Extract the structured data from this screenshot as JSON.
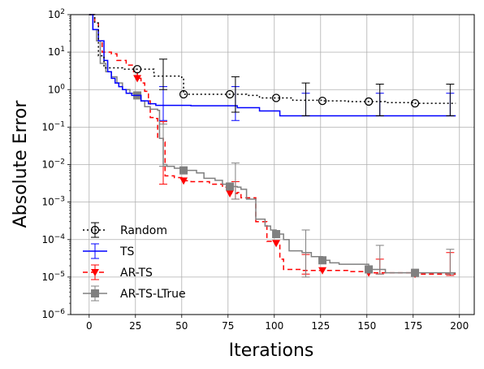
{
  "chart_data": {
    "type": "line",
    "xlabel": "Iterations",
    "ylabel": "Absolute Error",
    "xlim": [
      -10,
      208
    ],
    "ylim": [
      1e-06,
      100
    ],
    "yscale": "log",
    "grid": true,
    "legend_position": "lower-left",
    "x_ticks": [
      0,
      25,
      50,
      75,
      100,
      125,
      150,
      175,
      200
    ],
    "y_ticks": [
      {
        "value": 1e-06,
        "base": "10",
        "exp": "−6"
      },
      {
        "value": 1e-05,
        "base": "10",
        "exp": "−5"
      },
      {
        "value": 0.0001,
        "base": "10",
        "exp": "−4"
      },
      {
        "value": 0.001,
        "base": "10",
        "exp": "−3"
      },
      {
        "value": 0.01,
        "base": "10",
        "exp": "−2"
      },
      {
        "value": 0.1,
        "base": "10",
        "exp": "−1"
      },
      {
        "value": 1,
        "base": "10",
        "exp": "0"
      },
      {
        "value": 10,
        "base": "10",
        "exp": "1"
      },
      {
        "value": 100,
        "base": "10",
        "exp": "2"
      }
    ],
    "series": [
      {
        "name": "Random",
        "color": "#000000",
        "dash": "2,3",
        "marker": "circle-open",
        "points": [
          [
            0,
            100
          ],
          [
            3,
            60
          ],
          [
            5,
            8
          ],
          [
            8,
            3.8
          ],
          [
            18,
            3.5
          ],
          [
            26,
            3.5
          ],
          [
            35,
            2.3
          ],
          [
            50,
            2.0
          ],
          [
            51,
            0.75
          ],
          [
            60,
            0.75
          ],
          [
            76,
            0.75
          ],
          [
            85,
            0.7
          ],
          [
            92,
            0.6
          ],
          [
            101,
            0.6
          ],
          [
            110,
            0.52
          ],
          [
            126,
            0.5
          ],
          [
            140,
            0.48
          ],
          [
            151,
            0.48
          ],
          [
            160,
            0.45
          ],
          [
            176,
            0.43
          ],
          [
            198,
            0.43
          ]
        ],
        "markers": [
          {
            "x": 26,
            "y": 3.5
          },
          {
            "x": 51,
            "y": 0.75
          },
          {
            "x": 76,
            "y": 0.75
          },
          {
            "x": 101,
            "y": 0.6
          },
          {
            "x": 126,
            "y": 0.5
          },
          {
            "x": 151,
            "y": 0.48
          },
          {
            "x": 176,
            "y": 0.43
          }
        ],
        "errorbars": [
          {
            "x": 40,
            "y": 2.0,
            "lo": 1.0,
            "hi": 6.5
          },
          {
            "x": 79,
            "y": 0.75,
            "lo": 0.25,
            "hi": 2.2
          },
          {
            "x": 117,
            "y": 0.5,
            "lo": 0.2,
            "hi": 1.5
          },
          {
            "x": 157,
            "y": 0.46,
            "lo": 0.2,
            "hi": 1.4
          },
          {
            "x": 195,
            "y": 0.43,
            "lo": 0.2,
            "hi": 1.4
          }
        ]
      },
      {
        "name": "TS",
        "color": "#0000ff",
        "dash": "",
        "marker": "none",
        "points": [
          [
            0,
            100
          ],
          [
            2,
            40
          ],
          [
            5,
            20
          ],
          [
            8,
            6
          ],
          [
            10,
            3
          ],
          [
            12,
            2.0
          ],
          [
            14,
            1.5
          ],
          [
            16,
            1.2
          ],
          [
            18,
            1.0
          ],
          [
            20,
            0.8
          ],
          [
            23,
            0.7
          ],
          [
            26,
            0.7
          ],
          [
            28,
            0.5
          ],
          [
            32,
            0.42
          ],
          [
            36,
            0.38
          ],
          [
            55,
            0.37
          ],
          [
            70,
            0.37
          ],
          [
            75,
            0.37
          ],
          [
            80,
            0.33
          ],
          [
            90,
            0.33
          ],
          [
            92,
            0.27
          ],
          [
            100,
            0.27
          ],
          [
            103,
            0.2
          ],
          [
            198,
            0.2
          ]
        ],
        "errorbars": [
          {
            "x": 40,
            "y": 0.38,
            "lo": 0.15,
            "hi": 1.2
          },
          {
            "x": 79,
            "y": 0.35,
            "lo": 0.15,
            "hi": 1.2
          },
          {
            "x": 117,
            "y": 0.2,
            "lo": 0.2,
            "hi": 0.8
          },
          {
            "x": 157,
            "y": 0.2,
            "lo": 0.2,
            "hi": 0.8
          },
          {
            "x": 195,
            "y": 0.2,
            "lo": 0.2,
            "hi": 0.8
          }
        ]
      },
      {
        "name": "AR-TS",
        "color": "#ff0000",
        "dash": "6,4",
        "marker": "triangle-down",
        "points": [
          [
            0,
            100
          ],
          [
            3,
            60
          ],
          [
            5,
            20
          ],
          [
            7,
            10
          ],
          [
            12,
            9
          ],
          [
            15,
            6
          ],
          [
            20,
            4.5
          ],
          [
            24,
            3.0
          ],
          [
            26,
            2.0
          ],
          [
            28,
            1.5
          ],
          [
            30,
            0.9
          ],
          [
            32,
            0.5
          ],
          [
            33,
            0.18
          ],
          [
            36,
            0.17
          ],
          [
            37,
            0.05
          ],
          [
            40,
            0.04
          ],
          [
            41,
            0.005
          ],
          [
            46,
            0.0045
          ],
          [
            50,
            0.0037
          ],
          [
            55,
            0.0035
          ],
          [
            65,
            0.003
          ],
          [
            72,
            0.0025
          ],
          [
            76,
            0.0017
          ],
          [
            80,
            0.0018
          ],
          [
            82,
            0.0013
          ],
          [
            88,
            0.0013
          ],
          [
            90,
            0.0003
          ],
          [
            95,
            0.0003
          ],
          [
            96,
            9e-05
          ],
          [
            100,
            9e-05
          ],
          [
            101,
            8e-05
          ],
          [
            103,
            3e-05
          ],
          [
            105,
            1.6e-05
          ],
          [
            115,
            1.5e-05
          ],
          [
            126,
            1.5e-05
          ],
          [
            140,
            1.4e-05
          ],
          [
            150,
            1.3e-05
          ],
          [
            176,
            1.2e-05
          ],
          [
            198,
            1.2e-05
          ]
        ],
        "markers": [
          {
            "x": 26,
            "y": 2.0
          },
          {
            "x": 51,
            "y": 0.0037
          },
          {
            "x": 76,
            "y": 0.0017
          },
          {
            "x": 101,
            "y": 8e-05
          },
          {
            "x": 126,
            "y": 1.5e-05
          },
          {
            "x": 151,
            "y": 1.3e-05
          },
          {
            "x": 176,
            "y": 1.2e-05
          }
        ],
        "errorbars": [
          {
            "x": 40,
            "y": 0.005,
            "lo": 0.003,
            "hi": 0.14
          },
          {
            "x": 79,
            "y": 0.0018,
            "lo": 0.0012,
            "hi": 0.0035
          },
          {
            "x": 117,
            "y": 1.6e-05,
            "lo": 1.2e-05,
            "hi": 4e-05
          },
          {
            "x": 157,
            "y": 1.4e-05,
            "lo": 1.2e-05,
            "hi": 3e-05
          },
          {
            "x": 195,
            "y": 1.2e-05,
            "lo": 1.1e-05,
            "hi": 4.5e-05
          }
        ]
      },
      {
        "name": "AR-TS-LTrue",
        "color": "#808080",
        "dash": "",
        "marker": "square",
        "points": [
          [
            0,
            100
          ],
          [
            2,
            40
          ],
          [
            4,
            20
          ],
          [
            6,
            5
          ],
          [
            9,
            3
          ],
          [
            12,
            2.2
          ],
          [
            15,
            1.5
          ],
          [
            18,
            1.0
          ],
          [
            22,
            0.8
          ],
          [
            26,
            0.7
          ],
          [
            28,
            0.5
          ],
          [
            30,
            0.35
          ],
          [
            33,
            0.3
          ],
          [
            37,
            0.28
          ],
          [
            38,
            0.05
          ],
          [
            40,
            0.01
          ],
          [
            42,
            0.009
          ],
          [
            46,
            0.008
          ],
          [
            51,
            0.007
          ],
          [
            58,
            0.006
          ],
          [
            62,
            0.0043
          ],
          [
            68,
            0.0038
          ],
          [
            72,
            0.003
          ],
          [
            76,
            0.0026
          ],
          [
            80,
            0.0025
          ],
          [
            82,
            0.0022
          ],
          [
            85,
            0.0012
          ],
          [
            88,
            0.0012
          ],
          [
            90,
            0.00035
          ],
          [
            95,
            0.00023
          ],
          [
            98,
            0.00018
          ],
          [
            101,
            0.00014
          ],
          [
            105,
            0.0001
          ],
          [
            108,
            5e-05
          ],
          [
            115,
            4.5e-05
          ],
          [
            120,
            3.5e-05
          ],
          [
            126,
            2.8e-05
          ],
          [
            130,
            2.4e-05
          ],
          [
            135,
            2.2e-05
          ],
          [
            145,
            2.2e-05
          ],
          [
            151,
            1.6e-05
          ],
          [
            160,
            1.3e-05
          ],
          [
            176,
            1.3e-05
          ],
          [
            198,
            1.3e-05
          ]
        ],
        "markers": [
          {
            "x": 26,
            "y": 0.7
          },
          {
            "x": 51,
            "y": 0.007
          },
          {
            "x": 76,
            "y": 0.0026
          },
          {
            "x": 101,
            "y": 0.00014
          },
          {
            "x": 126,
            "y": 2.8e-05
          },
          {
            "x": 151,
            "y": 1.6e-05
          },
          {
            "x": 176,
            "y": 1.3e-05
          }
        ],
        "errorbars": [
          {
            "x": 40,
            "y": 0.009,
            "lo": 0.009,
            "hi": 0.12
          },
          {
            "x": 79,
            "y": 0.0025,
            "lo": 0.0012,
            "hi": 0.011
          },
          {
            "x": 117,
            "y": 4e-05,
            "lo": 1e-05,
            "hi": 0.00018
          },
          {
            "x": 157,
            "y": 1.6e-05,
            "lo": 1.2e-05,
            "hi": 7e-05
          },
          {
            "x": 195,
            "y": 1.3e-05,
            "lo": 1.2e-05,
            "hi": 5.5e-05
          }
        ]
      }
    ]
  }
}
